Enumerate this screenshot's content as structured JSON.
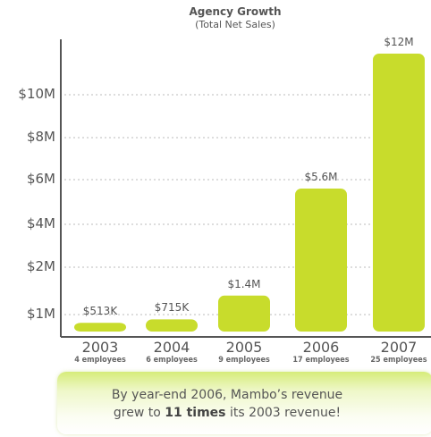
{
  "chart_data": {
    "type": "bar",
    "title": "Agency Growth",
    "subtitle": "(Total Net Sales)",
    "categories": [
      "2003",
      "2004",
      "2005",
      "2006",
      "2007"
    ],
    "category_sublabels": [
      "4 employees",
      "6 employees",
      "9 employees",
      "17 employees",
      "25 employees"
    ],
    "values": [
      0.513,
      0.715,
      1.4,
      5.6,
      12
    ],
    "value_labels": [
      "$513K",
      "$715K",
      "$1.4M",
      "$5.6M",
      "$12M"
    ],
    "y_ticks": [
      {
        "value": 1,
        "label": "$1M"
      },
      {
        "value": 2,
        "label": "$2M"
      },
      {
        "value": 4,
        "label": "$4M"
      },
      {
        "value": 6,
        "label": "$6M"
      },
      {
        "value": 8,
        "label": "$8M"
      },
      {
        "value": 10,
        "label": "$10M"
      }
    ],
    "grid": true,
    "colors": {
      "bar": "#c8dc2c",
      "grid": "#bbbbbb",
      "axis": "#555555",
      "text": "#555555"
    }
  },
  "callout": {
    "line1": "By year-end 2006, Mambo’s revenue",
    "line2_prefix": "grew to ",
    "line2_bold": "11 times",
    "line2_suffix": " its 2003 revenue!"
  }
}
